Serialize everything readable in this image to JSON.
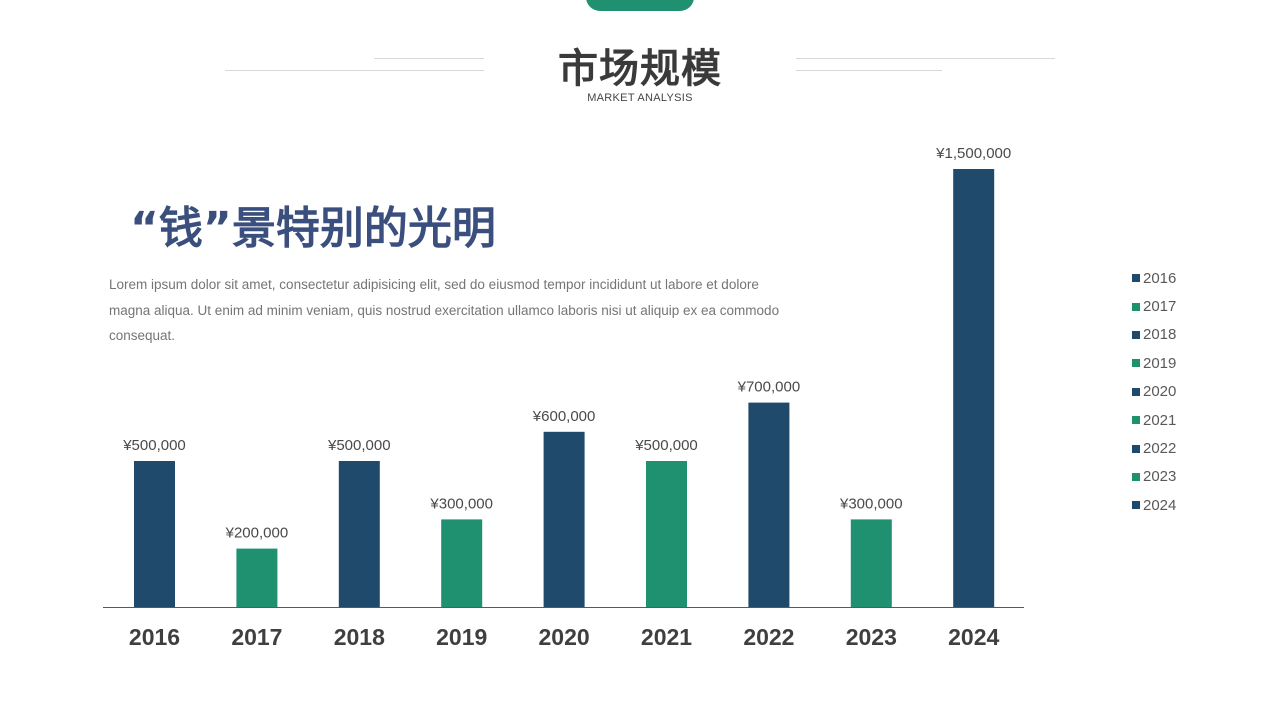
{
  "header": {
    "title": "市场规模",
    "subtitle": "MARKET ANALYSIS"
  },
  "main": {
    "headline": "“钱”景特别的光明",
    "body": "Lorem ipsum dolor sit amet, consectetur adipisicing elit, sed do eiusmod tempor incididunt ut labore et dolore magna aliqua. Ut enim ad minim veniam, quis nostrud exercitation ullamco laboris nisi ut aliquip ex ea commodo consequat."
  },
  "colors": {
    "accent": "#1f9070",
    "navy": "#1f4a6b",
    "green": "#1f9070",
    "headline": "#3b4f7f",
    "title": "#3a3a3a"
  },
  "chart_data": {
    "type": "bar",
    "categories": [
      "2016",
      "2017",
      "2018",
      "2019",
      "2020",
      "2021",
      "2022",
      "2023",
      "2024"
    ],
    "values": [
      500000,
      200000,
      500000,
      300000,
      600000,
      500000,
      700000,
      300000,
      1500000
    ],
    "data_labels": [
      "¥500,000",
      "¥200,000",
      "¥500,000",
      "¥300,000",
      "¥600,000",
      "¥500,000",
      "¥700,000",
      "¥300,000",
      "¥1,500,000"
    ],
    "bar_colors": [
      "#1f4a6b",
      "#1f9070",
      "#1f4a6b",
      "#1f9070",
      "#1f4a6b",
      "#1f9070",
      "#1f4a6b",
      "#1f9070",
      "#1f4a6b"
    ],
    "legend": [
      "2016",
      "2017",
      "2018",
      "2019",
      "2020",
      "2021",
      "2022",
      "2023",
      "2024"
    ],
    "legend_position": "right",
    "ylim": [
      0,
      1500000
    ],
    "grid": false,
    "xlabel": "",
    "ylabel": ""
  }
}
